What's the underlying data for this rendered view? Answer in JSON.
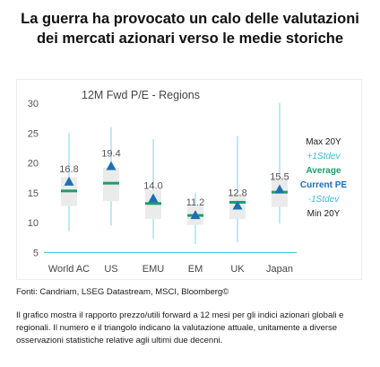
{
  "headline": "La guerra ha provocato un calo delle valutazioni dei mercati azionari verso le medie storiche",
  "source": "Fonti: Candriam, LSEG Datastream, MSCI, Bloomberg©",
  "description": "Il grafico mostra il rapporto prezzo/utili forward a 12 mesi per gli indici azionari globali e regionali. Il numero e il triangolo indicano la valutazione attuale, unitamente a diverse osservazioni statistiche relative agli ultimi due decenni.",
  "colors": {
    "range": "#7fd3e8",
    "band": "#ebebeb",
    "average": "#1aa06a",
    "current": "#1f6fb2",
    "stdev": "#3bbbd6",
    "text": "#1a1a1a"
  },
  "chart_data": {
    "type": "boxplot",
    "title": "12M Fwd P/E - Regions",
    "ylim": [
      4,
      30
    ],
    "yticks": [
      "5",
      "10",
      "15",
      "20",
      "25",
      "30"
    ],
    "grid": false,
    "legend": [
      {
        "label": "Max 20Y",
        "style": "dark"
      },
      {
        "label": "+1Stdev",
        "style": "stdev"
      },
      {
        "label": "Average",
        "style": "average"
      },
      {
        "label": "Current PE",
        "style": "current"
      },
      {
        "label": "-1Stdev",
        "style": "stdev"
      },
      {
        "label": "Min 20Y",
        "style": "dark"
      }
    ],
    "categories": [
      "World AC",
      "US",
      "EMU",
      "EM",
      "UK",
      "Japan"
    ],
    "series": [
      {
        "category": "World AC",
        "max": 25,
        "plus1sd": 17.6,
        "average": 15.3,
        "current": 16.8,
        "current_label": "16.8",
        "minus1sd": 12.8,
        "min": 8.5
      },
      {
        "category": "US",
        "max": 26,
        "plus1sd": 19.2,
        "average": 16.6,
        "current": 19.4,
        "current_label": "19.4",
        "minus1sd": 13.6,
        "min": 9.5
      },
      {
        "category": "EMU",
        "max": 24,
        "plus1sd": 15.5,
        "average": 13.2,
        "current": 14.0,
        "current_label": "14.0",
        "minus1sd": 10.6,
        "min": 7.3
      },
      {
        "category": "EM",
        "max": 15,
        "plus1sd": 12.9,
        "average": 11.2,
        "current": 11.2,
        "current_label": "11.2",
        "minus1sd": 9.6,
        "min": 6.4
      },
      {
        "category": "UK",
        "max": 24.5,
        "plus1sd": 14.8,
        "average": 13.4,
        "current": 12.8,
        "current_label": "12.8",
        "minus1sd": 10.6,
        "min": 6.7
      },
      {
        "category": "Japan",
        "max": 30,
        "plus1sd": 17.6,
        "average": 15.1,
        "current": 15.5,
        "current_label": "15.5",
        "minus1sd": 12.6,
        "min": 9.8
      }
    ]
  }
}
